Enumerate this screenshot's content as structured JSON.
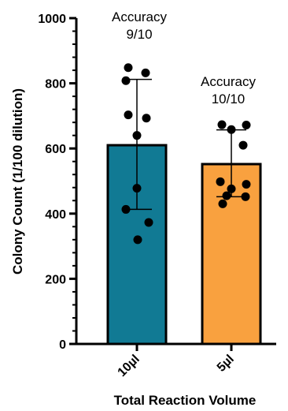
{
  "chart_data": {
    "type": "bar",
    "xlabel": "Total Reaction Volume",
    "ylabel": "Colony Count (1/100 dilution)",
    "ylim": [
      0,
      1000
    ],
    "yticks": [
      0,
      200,
      400,
      600,
      800,
      1000
    ],
    "grid": false,
    "categories": [
      "10µl",
      "5µl"
    ],
    "values": [
      610,
      552
    ],
    "error_bars": [
      {
        "low": 413,
        "high": 812
      },
      {
        "low": 452,
        "high": 657
      }
    ],
    "bar_colors": [
      "#117a94",
      "#f9a13f"
    ],
    "points": [
      [
        848,
        832,
        808,
        703,
        693,
        640,
        478,
        413,
        373,
        320
      ],
      [
        673,
        672,
        658,
        610,
        498,
        490,
        476,
        455,
        452,
        430
      ]
    ],
    "annotations": [
      {
        "category": "10µl",
        "lines": [
          "Accuracy",
          "9/10"
        ]
      },
      {
        "category": "5µl",
        "lines": [
          "Accuracy",
          "10/10"
        ]
      }
    ]
  }
}
